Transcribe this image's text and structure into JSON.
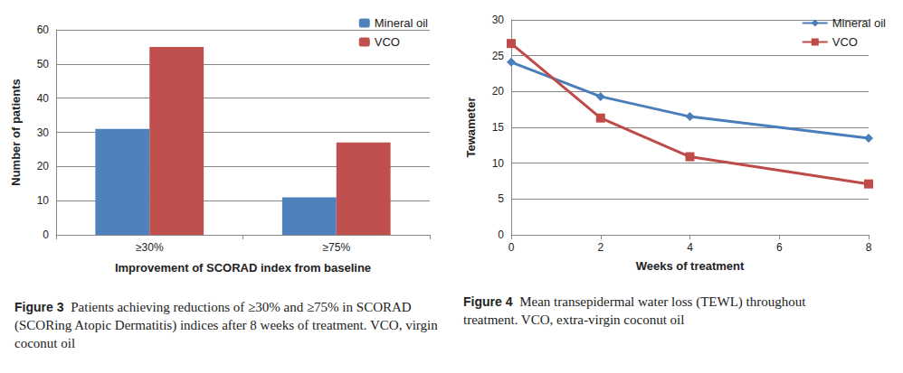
{
  "chart_data": [
    {
      "type": "bar",
      "caption_label": "Figure 3",
      "caption": "Patients achieving reductions of ≥30% and ≥75% in SCORAD (SCORing Atopic Dermatitis) indices after 8 weeks of treatment. VCO, virgin coconut oil",
      "x_label": "Improvement of SCORAD index from baseline",
      "y_label": "Number of patients",
      "categories": [
        "≥30%",
        "≥75%"
      ],
      "series": [
        {
          "name": "Mineral oil",
          "color": "#4f81bd",
          "values": [
            31,
            11
          ]
        },
        {
          "name": "VCO",
          "color": "#c0504d",
          "values": [
            55,
            27
          ]
        }
      ],
      "ylim": [
        0,
        60
      ],
      "yticks": [
        0,
        10,
        20,
        30,
        40,
        50,
        60
      ],
      "grid": true,
      "legend": "top-right"
    },
    {
      "type": "line",
      "caption_label": "Figure 4",
      "caption": "Mean transepidermal water loss (TEWL) throughout treatment. VCO, extra-virgin coconut oil",
      "x_label": "Weeks of treatment",
      "y_label": "Tewameter",
      "x": [
        0,
        2,
        4,
        8
      ],
      "series": [
        {
          "name": "Mineral oil",
          "color": "#4a7ebb",
          "marker": "diamond",
          "values": [
            24.1,
            19.3,
            16.5,
            13.5
          ]
        },
        {
          "name": "VCO",
          "color": "#be4b48",
          "marker": "square",
          "values": [
            26.7,
            16.3,
            10.9,
            7.1
          ]
        }
      ],
      "xlim": [
        0,
        8
      ],
      "xticks": [
        0,
        2,
        4,
        6,
        8
      ],
      "ylim": [
        0,
        30
      ],
      "yticks": [
        0,
        5,
        10,
        15,
        20,
        25,
        30
      ],
      "grid": true,
      "legend": "top-right"
    }
  ]
}
